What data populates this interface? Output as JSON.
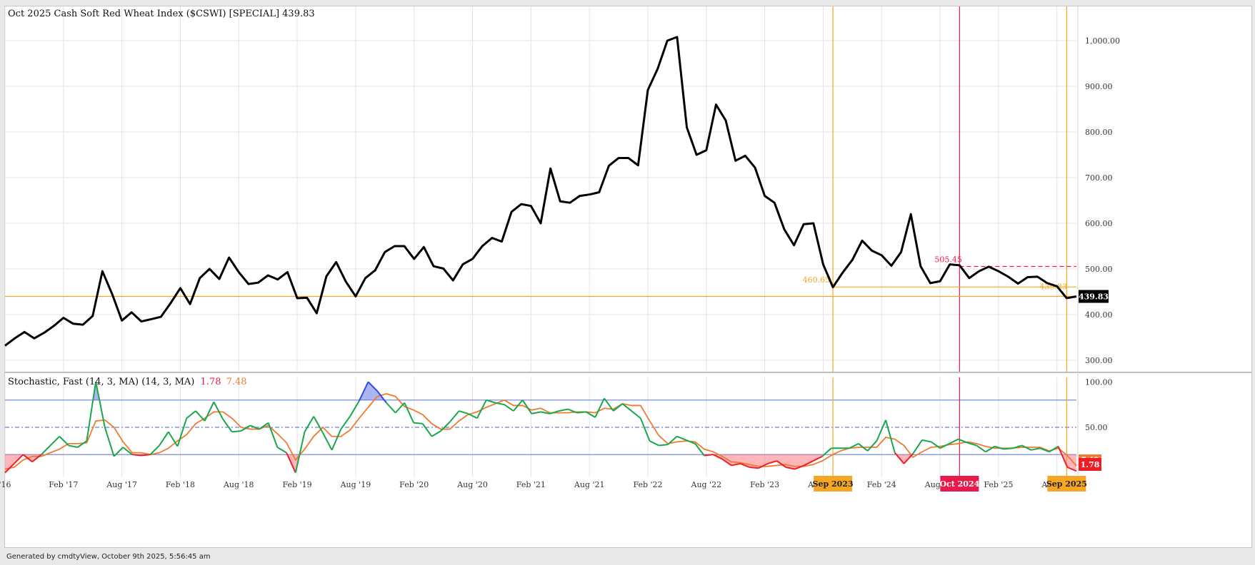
{
  "footer": "Generated by cmdtyView, October 9th 2025, 5:56:45 am",
  "chart_data": [
    {
      "type": "line",
      "title": "Oct 2025  Cash Soft Red Wheat Index ($CSWI) [SPECIAL] 439.83",
      "ylim": [
        275,
        1075
      ],
      "y_ticks": [
        "300.00",
        "400.00",
        "500.00",
        "600.00",
        "700.00",
        "800.00",
        "900.00",
        "1,000.00"
      ],
      "x_ticks": [
        "'16",
        "Feb '17",
        "Aug '17",
        "Feb '18",
        "Aug '18",
        "Feb '19",
        "Aug '19",
        "Feb '20",
        "Aug '20",
        "Feb '21",
        "Aug '21",
        "Feb '22",
        "Aug '22",
        "Feb '23",
        "Aug '23",
        "Feb '24",
        "Aug '24",
        "Feb '25",
        "Aug '25"
      ],
      "x_range": [
        "2016-08",
        "2025-10"
      ],
      "last_value_label": "439.83",
      "series": [
        {
          "color": "#000000",
          "x": [
            "2016-08",
            "2016-09",
            "2016-10",
            "2016-11",
            "2016-12",
            "2017-01",
            "2017-02",
            "2017-03",
            "2017-04",
            "2017-05",
            "2017-06",
            "2017-07",
            "2017-08",
            "2017-09",
            "2017-10",
            "2017-11",
            "2017-12",
            "2018-01",
            "2018-02",
            "2018-03",
            "2018-04",
            "2018-05",
            "2018-06",
            "2018-07",
            "2018-08",
            "2018-09",
            "2018-10",
            "2018-11",
            "2018-12",
            "2019-01",
            "2019-02",
            "2019-03",
            "2019-04",
            "2019-05",
            "2019-06",
            "2019-07",
            "2019-08",
            "2019-09",
            "2019-10",
            "2019-11",
            "2019-12",
            "2020-01",
            "2020-02",
            "2020-03",
            "2020-04",
            "2020-05",
            "2020-06",
            "2020-07",
            "2020-08",
            "2020-09",
            "2020-10",
            "2020-11",
            "2020-12",
            "2021-01",
            "2021-02",
            "2021-03",
            "2021-04",
            "2021-05",
            "2021-06",
            "2021-07",
            "2021-08",
            "2021-09",
            "2021-10",
            "2021-11",
            "2021-12",
            "2022-01",
            "2022-02",
            "2022-03",
            "2022-04",
            "2022-05",
            "2022-06",
            "2022-07",
            "2022-08",
            "2022-09",
            "2022-10",
            "2022-11",
            "2022-12",
            "2023-01",
            "2023-02",
            "2023-03",
            "2023-04",
            "2023-05",
            "2023-06",
            "2023-07",
            "2023-08",
            "2023-09",
            "2023-10",
            "2023-11",
            "2023-12",
            "2024-01",
            "2024-02",
            "2024-03",
            "2024-04",
            "2024-05",
            "2024-06",
            "2024-07",
            "2024-08",
            "2024-09",
            "2024-10",
            "2024-11",
            "2024-12",
            "2025-01",
            "2025-02",
            "2025-03",
            "2025-04",
            "2025-05",
            "2025-06",
            "2025-07",
            "2025-08",
            "2025-09",
            "2025-10"
          ],
          "y": [
            332,
            348,
            362,
            348,
            360,
            375,
            393,
            380,
            378,
            397,
            495,
            445,
            387,
            405,
            385,
            390,
            395,
            425,
            458,
            423,
            480,
            500,
            478,
            525,
            493,
            467,
            470,
            486,
            477,
            493,
            436,
            437,
            403,
            484,
            515,
            472,
            440,
            480,
            497,
            537,
            550,
            550,
            522,
            548,
            506,
            501,
            475,
            510,
            522,
            550,
            568,
            560,
            625,
            642,
            638,
            600,
            720,
            648,
            645,
            660,
            663,
            668,
            726,
            743,
            743,
            727,
            892,
            938,
            1000,
            1008,
            810,
            750,
            760,
            860,
            825,
            737,
            748,
            722,
            660,
            645,
            587,
            552,
            598,
            600,
            510,
            460,
            492,
            520,
            562,
            540,
            530,
            507,
            537,
            620,
            506,
            469,
            473,
            510,
            508,
            480,
            495,
            505,
            495,
            483,
            468,
            482,
            483,
            469,
            462,
            436,
            439.83
          ]
        }
      ],
      "annotations": [
        {
          "type": "vline",
          "x": "2023-09",
          "color": "#f5a623",
          "label": "Sep 2023"
        },
        {
          "type": "vline",
          "x": "2024-10",
          "color": "#e8194b",
          "label": "Oct 2024"
        },
        {
          "type": "vline",
          "x": "2025-09",
          "color": "#f5a623",
          "label": "Sep 2025"
        },
        {
          "type": "hline",
          "y": 460.65,
          "from": "2023-09",
          "color": "#f5a623",
          "label": "460.65"
        },
        {
          "type": "hline",
          "y": 505.45,
          "from": "2024-10",
          "color": "#e8194b",
          "dashed": true,
          "label": "505.45"
        },
        {
          "type": "hline",
          "y": 439.83,
          "color": "#f5a623"
        },
        {
          "type": "point_label",
          "x": "2025-09",
          "y": 439.83,
          "color": "#f5a623",
          "label": "439.83"
        }
      ]
    },
    {
      "type": "line",
      "title": "Stochastic, Fast (14, 3, MA)  (14, 3, MA)",
      "title_values": [
        "1.78",
        "7.48"
      ],
      "ylim": [
        -5,
        105
      ],
      "y_ticks": [
        "50.00",
        "100.00"
      ],
      "levels": [
        80,
        50,
        20
      ],
      "last_value_labels": [
        "7.48",
        "1.78"
      ],
      "series": [
        {
          "name": "%K",
          "color": "#1aa64b",
          "y": [
            0,
            10,
            20,
            12,
            20,
            30,
            40,
            30,
            28,
            35,
            100,
            50,
            18,
            28,
            20,
            19,
            20,
            30,
            45,
            29,
            60,
            68,
            57,
            78,
            59,
            45,
            46,
            52,
            48,
            55,
            28,
            22,
            0,
            45,
            62,
            44,
            25,
            48,
            62,
            79,
            100,
            90,
            77,
            66,
            77,
            55,
            54,
            40,
            46,
            56,
            68,
            65,
            60,
            80,
            77,
            75,
            68,
            80,
            65,
            67,
            65,
            68,
            70,
            66,
            67,
            61,
            82,
            68,
            76,
            68,
            60,
            35,
            30,
            31,
            40,
            36,
            32,
            19,
            20,
            15,
            8,
            10,
            6,
            5,
            10,
            13,
            6,
            4,
            8,
            13,
            18,
            27,
            27,
            27,
            32,
            24,
            35,
            58,
            22,
            10,
            21,
            36,
            34,
            27,
            32,
            37,
            33,
            30,
            23,
            29,
            26,
            27,
            30,
            25,
            27,
            23,
            29,
            6,
            1.78
          ]
        },
        {
          "name": "%D",
          "color": "#f07a30",
          "y": [
            4,
            6,
            14,
            18,
            18,
            22,
            26,
            32,
            32,
            33,
            57,
            58,
            50,
            34,
            22,
            22,
            20,
            22,
            27,
            35,
            42,
            54,
            60,
            67,
            67,
            60,
            50,
            48,
            48,
            52,
            43,
            33,
            14,
            26,
            40,
            50,
            40,
            40,
            47,
            60,
            72,
            84,
            87,
            84,
            73,
            69,
            64,
            54,
            48,
            48,
            57,
            64,
            67,
            72,
            76,
            80,
            74,
            74,
            69,
            71,
            66,
            66,
            66,
            67,
            67,
            66,
            71,
            70,
            76,
            74,
            74,
            57,
            41,
            32,
            34,
            35,
            34,
            26,
            23,
            18,
            12,
            11,
            9,
            7,
            7,
            8,
            9,
            7,
            7,
            9,
            13,
            19,
            24,
            27,
            28,
            28,
            28,
            39,
            37,
            30,
            17,
            23,
            28,
            29,
            31,
            32,
            34,
            32,
            29,
            27,
            27,
            27,
            28,
            28,
            28,
            24,
            27,
            19,
            7.48
          ]
        }
      ]
    }
  ]
}
